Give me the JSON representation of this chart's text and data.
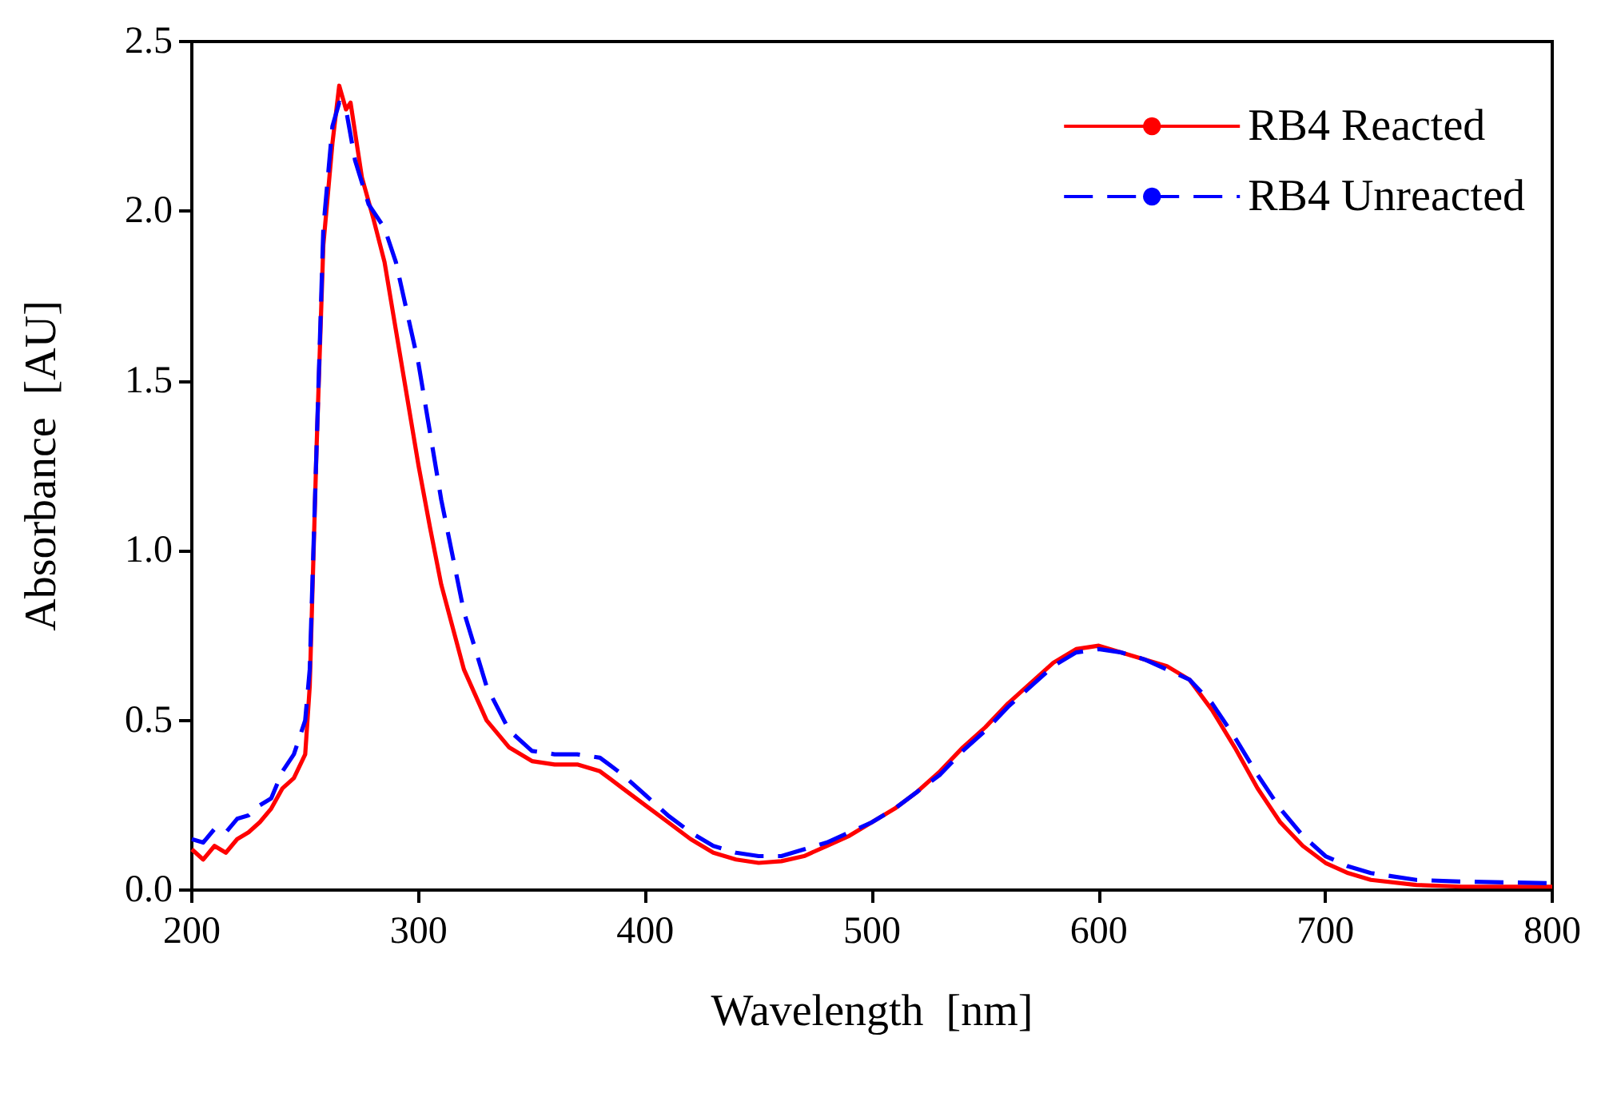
{
  "chart_data": {
    "type": "line",
    "xlabel": "Wavelength  [nm]",
    "ylabel": "Absorbance  [AU]",
    "xlim": [
      200,
      800
    ],
    "xticks": [
      200,
      300,
      400,
      500,
      600,
      700,
      800
    ],
    "ylim": [
      0,
      2.5
    ],
    "yticks": [
      {
        "value": 0,
        "label": "0.0"
      },
      0.5,
      {
        "value": 1,
        "label": "1.0"
      },
      1.5,
      {
        "value": 2,
        "label": "2.0"
      },
      2.5
    ],
    "grid": false,
    "legend": "top right",
    "marker": "none",
    "series": [
      {
        "name": "RB4 Reacted",
        "color": "#ff0000",
        "line_style": "solid",
        "x": [
          200,
          205,
          210,
          215,
          220,
          225,
          230,
          235,
          240,
          245,
          250,
          252,
          255,
          258,
          262,
          265,
          268,
          270,
          275,
          280,
          285,
          290,
          295,
          300,
          305,
          310,
          320,
          330,
          340,
          350,
          360,
          370,
          380,
          390,
          400,
          410,
          420,
          430,
          440,
          450,
          460,
          470,
          480,
          490,
          500,
          510,
          520,
          530,
          540,
          550,
          560,
          570,
          580,
          590,
          600,
          610,
          620,
          630,
          640,
          650,
          660,
          670,
          680,
          690,
          700,
          710,
          720,
          740,
          760,
          800
        ],
        "values": [
          0.12,
          0.09,
          0.13,
          0.11,
          0.15,
          0.17,
          0.2,
          0.24,
          0.3,
          0.33,
          0.4,
          0.6,
          1.3,
          1.9,
          2.2,
          2.37,
          2.3,
          2.32,
          2.1,
          1.98,
          1.85,
          1.65,
          1.45,
          1.25,
          1.07,
          0.9,
          0.65,
          0.5,
          0.42,
          0.38,
          0.37,
          0.37,
          0.35,
          0.3,
          0.25,
          0.2,
          0.15,
          0.11,
          0.09,
          0.08,
          0.085,
          0.1,
          0.13,
          0.16,
          0.2,
          0.24,
          0.29,
          0.35,
          0.42,
          0.48,
          0.55,
          0.61,
          0.67,
          0.71,
          0.72,
          0.7,
          0.68,
          0.66,
          0.62,
          0.53,
          0.42,
          0.3,
          0.2,
          0.13,
          0.08,
          0.05,
          0.03,
          0.015,
          0.01,
          0.01
        ]
      },
      {
        "name": "RB4 Unreacted",
        "color": "#0000ff",
        "line_style": "dashed",
        "x": [
          200,
          205,
          210,
          215,
          220,
          225,
          230,
          235,
          240,
          245,
          250,
          252,
          255,
          258,
          262,
          265,
          268,
          272,
          278,
          285,
          290,
          295,
          300,
          305,
          310,
          320,
          330,
          340,
          350,
          360,
          370,
          380,
          390,
          400,
          410,
          420,
          430,
          440,
          450,
          460,
          470,
          480,
          490,
          500,
          510,
          520,
          530,
          540,
          550,
          560,
          570,
          580,
          590,
          600,
          610,
          620,
          630,
          640,
          650,
          660,
          670,
          680,
          690,
          700,
          710,
          720,
          740,
          760,
          800
        ],
        "values": [
          0.15,
          0.14,
          0.18,
          0.17,
          0.21,
          0.22,
          0.25,
          0.27,
          0.35,
          0.4,
          0.5,
          0.65,
          1.3,
          1.95,
          2.25,
          2.32,
          2.3,
          2.15,
          2.02,
          1.95,
          1.85,
          1.7,
          1.55,
          1.35,
          1.15,
          0.82,
          0.6,
          0.47,
          0.41,
          0.4,
          0.4,
          0.39,
          0.34,
          0.28,
          0.22,
          0.17,
          0.13,
          0.11,
          0.1,
          0.1,
          0.12,
          0.14,
          0.17,
          0.2,
          0.24,
          0.29,
          0.34,
          0.41,
          0.47,
          0.54,
          0.6,
          0.66,
          0.7,
          0.71,
          0.7,
          0.68,
          0.65,
          0.62,
          0.55,
          0.45,
          0.34,
          0.24,
          0.16,
          0.1,
          0.07,
          0.05,
          0.03,
          0.025,
          0.02
        ]
      }
    ]
  }
}
